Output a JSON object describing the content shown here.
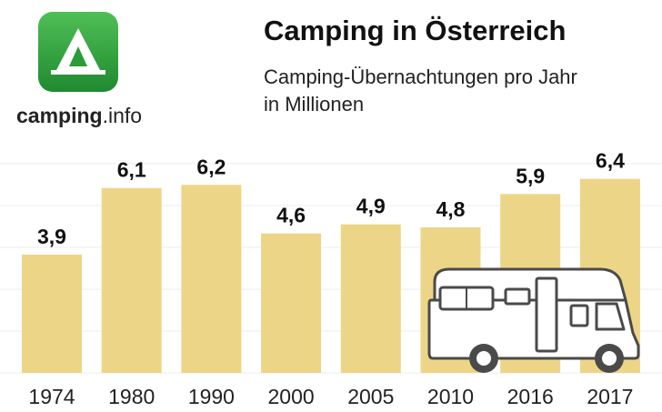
{
  "brand": {
    "name_part1": "camping",
    "name_part2": ".info",
    "icon": "tent-icon",
    "color": "#2a9d3c"
  },
  "header": {
    "title": "Camping in Österreich",
    "subtitle_line1": "Camping-Übernachtungen pro Jahr",
    "subtitle_line2": "in Millionen"
  },
  "colors": {
    "bar": "#edd588",
    "grid": "#eeeeee",
    "rv_fill": "#ffffff",
    "rv_stroke": "#4a4a4a"
  },
  "illustration": {
    "icon": "motorhome-icon"
  },
  "chart_data": {
    "type": "bar",
    "title": "Camping in Österreich",
    "subtitle": "Camping-Übernachtungen pro Jahr in Millionen",
    "categories": [
      "1974",
      "1980",
      "1990",
      "2000",
      "2005",
      "2010",
      "2016",
      "2017"
    ],
    "values": [
      3.9,
      6.1,
      6.2,
      4.6,
      4.9,
      4.8,
      5.9,
      6.4
    ],
    "value_labels": [
      "3,9",
      "6,1",
      "6,2",
      "4,6",
      "4,9",
      "4,8",
      "5,9",
      "6,4"
    ],
    "xlabel": "",
    "ylabel": "",
    "ylim": [
      0,
      7.8
    ],
    "grid": true,
    "legend": "none"
  }
}
